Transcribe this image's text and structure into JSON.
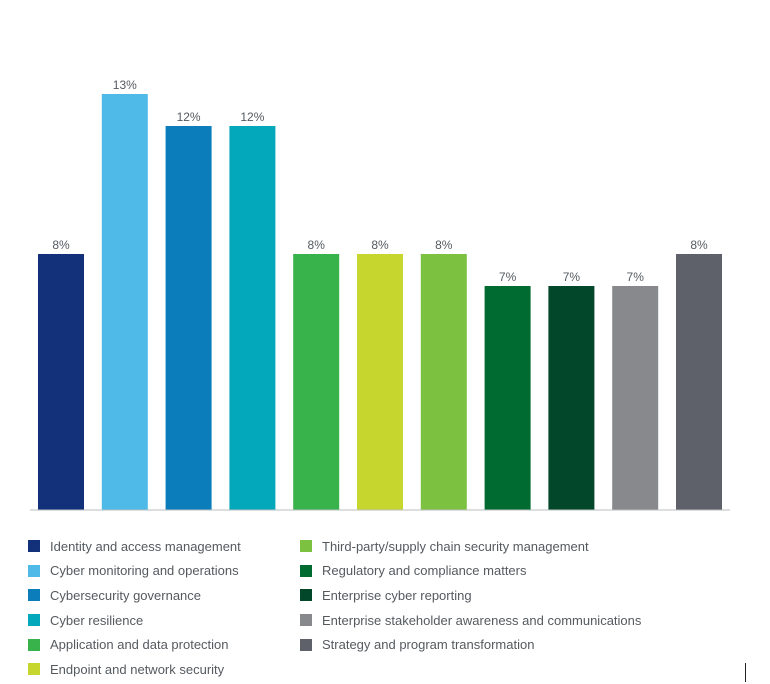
{
  "chart_data": {
    "type": "bar",
    "title": "",
    "xlabel": "",
    "ylabel": "",
    "ylim": [
      0,
      13
    ],
    "grid": false,
    "legend_position": "bottom",
    "categories": [
      "Identity and access management",
      "Cyber monitoring and operations",
      "Cybersecurity governance",
      "Cyber resilience",
      "Application and data protection",
      "Endpoint and network security",
      "Third-party/supply chain security management",
      "Regulatory and compliance matters",
      "Enterprise cyber reporting",
      "Enterprise stakeholder awareness and communications",
      "Strategy and program transformation"
    ],
    "values": [
      8,
      13,
      12,
      12,
      8,
      8,
      8,
      7,
      7,
      7,
      8
    ],
    "value_labels": [
      "8%",
      "13%",
      "12%",
      "12%",
      "8%",
      "8%",
      "8%",
      "7%",
      "7%",
      "7%",
      "8%"
    ],
    "colors": [
      "#12317a",
      "#4fb9e8",
      "#0a7dba",
      "#03a8bb",
      "#38b24a",
      "#c6d62e",
      "#7dc141",
      "#006b30",
      "#03472a",
      "#87898c",
      "#5e6169"
    ]
  }
}
